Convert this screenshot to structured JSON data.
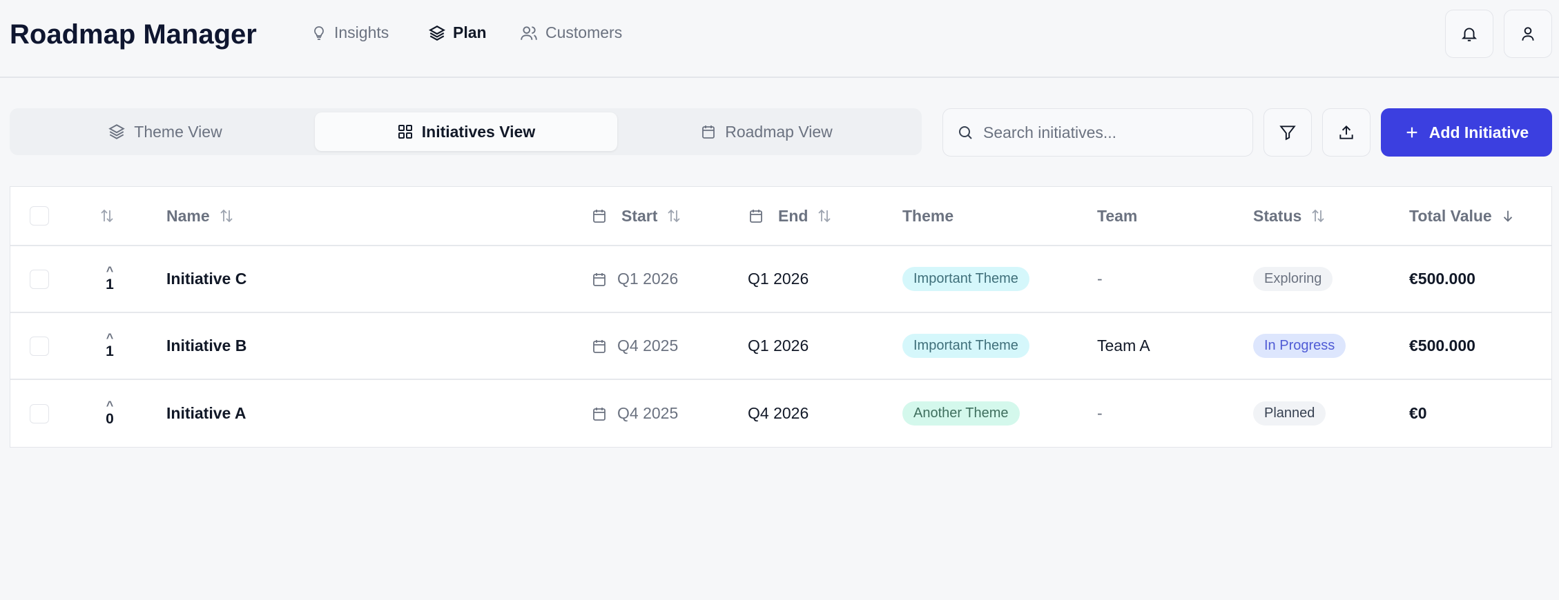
{
  "app": {
    "title": "Roadmap Manager"
  },
  "nav": [
    {
      "label": "Insights",
      "icon": "lightbulb-icon"
    },
    {
      "label": "Plan",
      "icon": "layers-icon",
      "active": true
    },
    {
      "label": "Customers",
      "icon": "users-icon"
    }
  ],
  "views": [
    {
      "label": "Theme View"
    },
    {
      "label": "Initiatives View",
      "active": true
    },
    {
      "label": "Roadmap View"
    }
  ],
  "search": {
    "placeholder": "Search initiatives...",
    "value": ""
  },
  "actions": {
    "add_label": "Add Initiative"
  },
  "colors": {
    "accent": "#3b3fe0",
    "theme_important": "#d5f7fb",
    "theme_another": "#d4f8ec",
    "status_in_progress": "#dde6fd",
    "status_neutral": "#f1f3f6"
  },
  "table": {
    "columns": {
      "name": "Name",
      "start": "Start",
      "end": "End",
      "theme": "Theme",
      "team": "Team",
      "status": "Status",
      "total": "Total Value"
    },
    "rows": [
      {
        "votes": "1",
        "name": "Initiative C",
        "start": "Q1 2026",
        "end": "Q1 2026",
        "theme": "Important Theme",
        "team": "-",
        "status": "Exploring",
        "total": "€500.000"
      },
      {
        "votes": "1",
        "name": "Initiative B",
        "start": "Q4 2025",
        "end": "Q1 2026",
        "theme": "Important Theme",
        "team": "Team A",
        "status": "In Progress",
        "total": "€500.000"
      },
      {
        "votes": "0",
        "name": "Initiative A",
        "start": "Q4 2025",
        "end": "Q4 2026",
        "theme": "Another Theme",
        "team": "-",
        "status": "Planned",
        "total": "€0"
      }
    ]
  }
}
